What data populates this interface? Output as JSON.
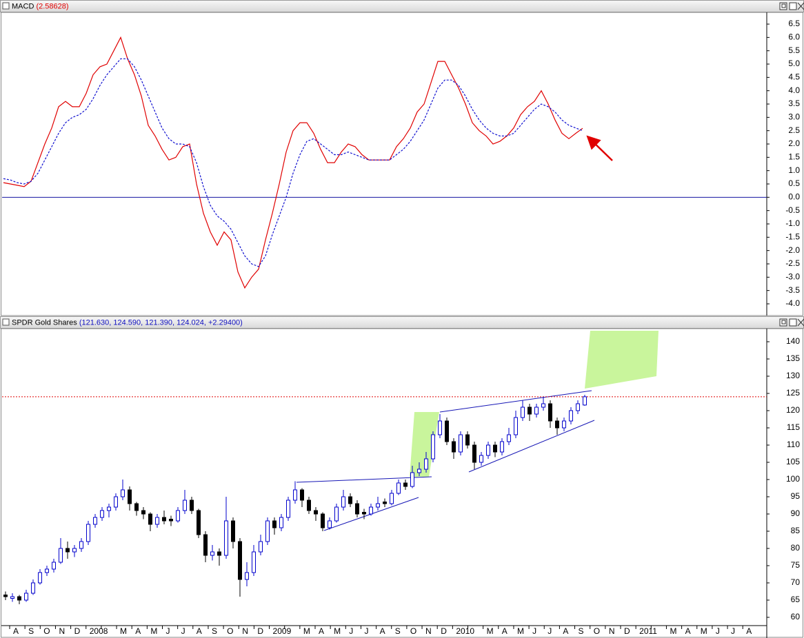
{
  "chart_data": [
    {
      "type": "line",
      "title": "MACD",
      "subtitle": "(2.58628)",
      "ylim": [
        -4.44,
        6.94
      ],
      "yticks": [
        6.5,
        {
          "value": 6,
          "label": "6.0"
        },
        5.5,
        {
          "value": 5,
          "label": "5.0"
        },
        4.5,
        {
          "value": 4,
          "label": "4.0"
        },
        3.5,
        {
          "value": 3,
          "label": "3.0"
        },
        2.5,
        {
          "value": 2,
          "label": "2.0"
        },
        1.5,
        {
          "value": 1,
          "label": "1.0"
        },
        0.5,
        {
          "value": 0,
          "label": "0.0"
        },
        -0.5,
        {
          "value": -1,
          "label": "-1.0"
        },
        -1.5,
        {
          "value": -2,
          "label": "-2.0"
        },
        -2.5,
        {
          "value": -3,
          "label": "-3.0"
        },
        -3.5,
        {
          "value": -4,
          "label": "-4.0"
        }
      ],
      "series": [
        {
          "color": "#e00000",
          "dashed": false,
          "values": [
            0.55,
            0.5,
            0.45,
            0.4,
            0.6,
            1.3,
            2.0,
            2.6,
            3.4,
            3.6,
            3.4,
            3.4,
            3.9,
            4.6,
            4.9,
            5.0,
            5.5,
            6.0,
            5.2,
            4.6,
            3.8,
            2.7,
            2.3,
            1.8,
            1.4,
            1.5,
            1.9,
            2.0,
            0.5,
            -0.6,
            -1.3,
            -1.8,
            -1.3,
            -1.6,
            -2.8,
            -3.4,
            -3.0,
            -2.7,
            -1.6,
            -0.6,
            0.5,
            1.7,
            2.5,
            2.8,
            2.8,
            2.4,
            1.8,
            1.3,
            1.3,
            1.7,
            2.0,
            1.9,
            1.6,
            1.4,
            1.4,
            1.4,
            1.4,
            1.9,
            2.2,
            2.6,
            3.2,
            3.5,
            4.3,
            5.1,
            5.1,
            4.6,
            4.1,
            3.5,
            2.8,
            2.5,
            2.3,
            2.0,
            2.1,
            2.3,
            2.6,
            3.1,
            3.4,
            3.6,
            4.0,
            3.5,
            2.9,
            2.4,
            2.2,
            2.4,
            2.59
          ]
        },
        {
          "color": "#1010d0",
          "dashed": true,
          "values": [
            0.7,
            0.65,
            0.55,
            0.5,
            0.6,
            0.9,
            1.4,
            1.9,
            2.4,
            2.8,
            3.0,
            3.1,
            3.3,
            3.7,
            4.2,
            4.6,
            4.9,
            5.2,
            5.2,
            4.9,
            4.4,
            3.8,
            3.2,
            2.6,
            2.2,
            2.0,
            2.0,
            1.9,
            1.3,
            0.4,
            -0.3,
            -0.7,
            -0.9,
            -1.2,
            -1.7,
            -2.2,
            -2.5,
            -2.6,
            -2.2,
            -1.4,
            -0.7,
            0.0,
            0.9,
            1.6,
            2.1,
            2.2,
            2.0,
            1.8,
            1.6,
            1.6,
            1.7,
            1.6,
            1.5,
            1.4,
            1.4,
            1.4,
            1.4,
            1.6,
            1.8,
            2.1,
            2.5,
            2.9,
            3.5,
            4.1,
            4.4,
            4.4,
            4.2,
            3.8,
            3.3,
            2.9,
            2.6,
            2.4,
            2.3,
            2.3,
            2.4,
            2.7,
            3.0,
            3.3,
            3.5,
            3.4,
            3.2,
            2.9,
            2.7,
            2.6,
            2.5
          ]
        }
      ],
      "zero_line_color": "#1010a0"
    },
    {
      "type": "candlestick",
      "title": "SPDR Gold Shares",
      "subtitle": "(121.630, 124.590, 121.390, 124.024, +2.29400)",
      "categories": [
        "A",
        "S",
        "O",
        "N",
        "D",
        "2008",
        null,
        "M",
        "A",
        "M",
        "J",
        "J",
        "A",
        "S",
        "O",
        "N",
        "D",
        "2009",
        null,
        "M",
        "A",
        "M",
        "J",
        "J",
        "A",
        "S",
        "O",
        "N",
        "D",
        "2010",
        null,
        "M",
        "A",
        "M",
        "J",
        "J",
        "A",
        "S",
        "O",
        "N",
        "D",
        "2011",
        null,
        "M",
        "A",
        "M",
        "J",
        "J",
        "A"
      ],
      "ylim": [
        57.6,
        143.6
      ],
      "yticks": [
        140,
        135,
        130,
        125,
        120,
        115,
        110,
        105,
        100,
        95,
        90,
        85,
        80,
        75,
        70,
        65,
        60
      ],
      "up_color": "#0000cc",
      "down_color": "#000000",
      "last_line_color": "#e00000",
      "candles": [
        [
          66.5,
          67.5,
          65,
          66
        ],
        [
          65.5,
          67,
          64.5,
          66
        ],
        [
          66,
          66.5,
          63.8,
          65
        ],
        [
          65,
          68,
          64.5,
          67
        ],
        [
          67,
          71,
          66.5,
          70
        ],
        [
          70,
          74,
          69.5,
          73
        ],
        [
          73,
          75,
          72,
          74
        ],
        [
          74,
          77,
          73,
          76
        ],
        [
          76,
          83,
          75.5,
          80
        ],
        [
          80,
          82,
          77,
          79
        ],
        [
          79,
          81,
          77.5,
          80
        ],
        [
          80,
          83,
          79,
          82
        ],
        [
          82,
          88,
          81,
          87
        ],
        [
          87,
          90,
          86,
          89
        ],
        [
          89,
          92,
          88,
          91
        ],
        [
          91,
          93,
          89,
          92
        ],
        [
          92,
          96,
          91,
          95
        ],
        [
          95,
          100,
          94,
          97
        ],
        [
          97,
          98,
          91,
          93
        ],
        [
          93,
          93.5,
          89.5,
          91
        ],
        [
          91,
          92,
          88.5,
          90
        ],
        [
          90,
          90.5,
          85,
          87
        ],
        [
          87,
          90,
          86,
          89
        ],
        [
          89,
          91,
          87,
          88
        ],
        [
          88.5,
          89.5,
          86.5,
          88
        ],
        [
          88,
          92,
          87.5,
          91
        ],
        [
          91,
          97,
          90,
          94
        ],
        [
          94,
          95,
          90,
          91
        ],
        [
          91,
          91.5,
          83,
          84
        ],
        [
          84,
          85,
          76,
          78
        ],
        [
          78,
          81,
          76.5,
          79
        ],
        [
          79,
          80,
          75,
          78
        ],
        [
          78,
          95,
          77,
          88
        ],
        [
          88,
          89,
          80,
          82
        ],
        [
          82,
          83,
          66,
          71
        ],
        [
          71,
          76,
          69,
          73
        ],
        [
          73,
          81,
          72,
          79
        ],
        [
          79,
          84,
          78,
          82
        ],
        [
          82,
          89,
          81,
          88
        ],
        [
          88,
          89,
          84,
          86
        ],
        [
          86,
          90,
          85,
          89
        ],
        [
          89,
          95,
          88,
          94
        ],
        [
          94,
          99.5,
          93,
          97
        ],
        [
          97,
          97.5,
          92,
          94
        ],
        [
          94,
          95,
          90,
          91
        ],
        [
          91,
          92,
          88,
          90
        ],
        [
          90,
          90.5,
          85,
          86
        ],
        [
          86,
          89,
          85.5,
          88
        ],
        [
          88,
          93,
          87.5,
          92
        ],
        [
          92,
          97,
          91,
          95
        ],
        [
          95,
          96,
          92,
          93
        ],
        [
          93,
          94,
          89,
          90
        ],
        [
          90.5,
          91.5,
          88.5,
          90
        ],
        [
          90,
          93,
          89.5,
          92
        ],
        [
          92,
          95,
          91,
          93
        ],
        [
          93.5,
          94.5,
          92,
          93
        ],
        [
          93,
          97,
          92.5,
          96
        ],
        [
          96,
          100,
          95.5,
          99
        ],
        [
          99,
          100,
          97,
          98
        ],
        [
          98,
          104,
          97.5,
          102
        ],
        [
          102,
          105,
          101,
          103
        ],
        [
          103,
          108,
          102,
          106
        ],
        [
          106,
          114,
          105,
          113
        ],
        [
          113,
          119,
          112,
          117
        ],
        [
          117,
          118,
          110,
          111
        ],
        [
          111,
          112,
          106,
          108
        ],
        [
          108,
          114,
          107,
          113
        ],
        [
          113,
          114,
          109,
          110
        ],
        [
          110,
          111,
          103,
          105
        ],
        [
          105,
          108,
          104,
          107
        ],
        [
          107,
          111,
          106,
          110
        ],
        [
          110,
          111,
          106.5,
          108
        ],
        [
          108,
          112,
          107,
          111
        ],
        [
          111,
          115,
          110,
          113
        ],
        [
          113,
          120,
          112,
          118
        ],
        [
          118,
          123,
          117,
          121
        ],
        [
          121,
          122,
          117,
          119
        ],
        [
          119,
          122,
          118,
          121
        ],
        [
          121,
          124,
          120,
          122
        ],
        [
          122,
          123,
          115,
          117
        ],
        [
          117,
          118,
          113,
          115
        ],
        [
          115,
          118,
          114,
          117
        ],
        [
          117,
          121,
          116,
          120
        ],
        [
          120,
          123,
          119,
          122
        ],
        [
          121.63,
          124.59,
          121.39,
          124.024
        ]
      ]
    }
  ]
}
